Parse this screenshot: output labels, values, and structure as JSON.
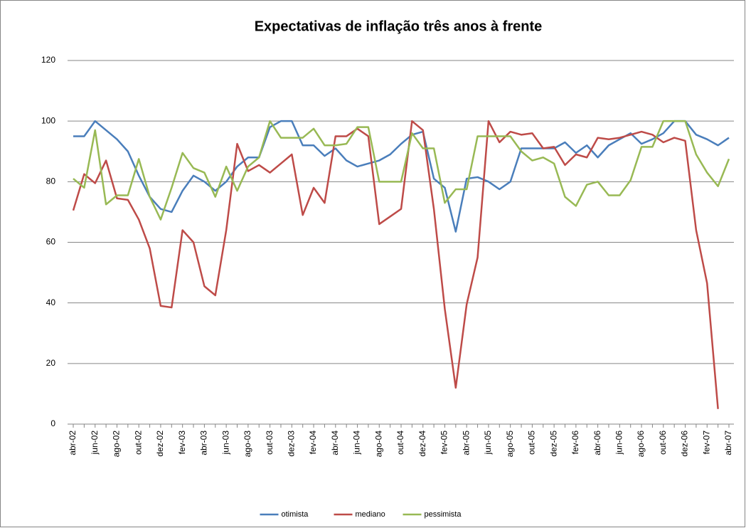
{
  "chart_data": {
    "type": "line",
    "title": "Expectativas de inflação três anos à frente",
    "categories": [
      "abr-02",
      null,
      "jun-02",
      null,
      "ago-02",
      null,
      "out-02",
      null,
      "dez-02",
      null,
      "fev-03",
      null,
      "abr-03",
      null,
      "jun-03",
      null,
      "ago-03",
      null,
      "out-03",
      null,
      "dez-03",
      null,
      "fev-04",
      null,
      "abr-04",
      null,
      "jun-04",
      null,
      "ago-04",
      null,
      "out-04",
      null,
      "dez-04",
      null,
      "fev-05",
      null,
      "abr-05",
      null,
      "jun-05",
      null,
      "ago-05",
      null,
      "out-05",
      null,
      "dez-05",
      null,
      "fev-06",
      null,
      "abr-06",
      null,
      "jun-06",
      null,
      "ago-06",
      null,
      "out-06",
      null,
      "dez-06",
      null,
      "fev-07",
      null,
      "abr-07"
    ],
    "series": [
      {
        "name": "otimista",
        "color": "#4a7ebb",
        "values": [
          95,
          95,
          100,
          97,
          94,
          90,
          82,
          75,
          71,
          70,
          77,
          82,
          80,
          77,
          80,
          85,
          88,
          88,
          98,
          100,
          100,
          92,
          92,
          88.5,
          91,
          87,
          85,
          86,
          87,
          89,
          92.5,
          95.5,
          96.5,
          81,
          78,
          63.5,
          81,
          81.5,
          80,
          77.5,
          80,
          91,
          91,
          91,
          91,
          93,
          89.5,
          92,
          88,
          92,
          94,
          96,
          92.5,
          94,
          96,
          100,
          100,
          95.5,
          94,
          92,
          94.5
        ]
      },
      {
        "name": "mediano",
        "color": "#be4b48",
        "values": [
          70.5,
          82.5,
          79.5,
          87,
          74.5,
          74,
          67.5,
          58,
          39,
          38.5,
          64,
          60,
          45.5,
          42.5,
          64,
          92.5,
          83.5,
          85.5,
          83,
          86,
          89,
          69,
          78,
          73,
          95,
          95,
          97.5,
          95,
          66,
          68.5,
          71,
          100,
          97,
          71,
          38,
          12,
          39.5,
          55,
          100,
          93,
          96.5,
          95.5,
          96,
          91,
          91.5,
          85.5,
          89,
          88,
          94.5,
          94,
          94.5,
          95.5,
          96.5,
          95.5,
          93,
          94.5,
          93.5,
          64,
          46.5,
          5,
          null
        ]
      },
      {
        "name": "pessimista",
        "color": "#98b954",
        "values": [
          81,
          78,
          97,
          72.5,
          75.5,
          75.5,
          87.5,
          75,
          67.5,
          78,
          89.5,
          84.5,
          83,
          75,
          85,
          77,
          85,
          88,
          100,
          94.5,
          94.5,
          94.5,
          97.5,
          92,
          92,
          92.5,
          98,
          98,
          80,
          80,
          80,
          96,
          91,
          91,
          73,
          77.5,
          77.5,
          95,
          95,
          95,
          95,
          90,
          87,
          88,
          86,
          75,
          72,
          79,
          80,
          75.5,
          75.5,
          80.5,
          91.5,
          91.5,
          100,
          100,
          100,
          89,
          83,
          78.5,
          87.5
        ]
      }
    ],
    "ylim": [
      0,
      120
    ],
    "yticks": [
      0,
      20,
      40,
      60,
      80,
      100,
      120
    ],
    "grid": true,
    "legend": "bottom"
  }
}
